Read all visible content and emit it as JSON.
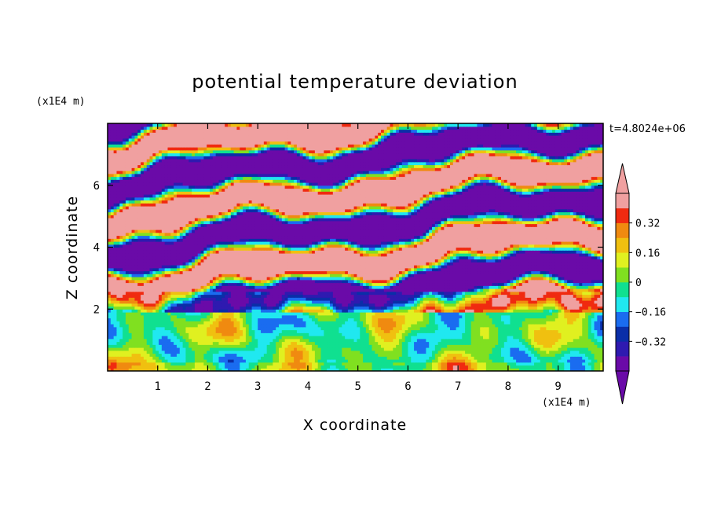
{
  "chart_data": {
    "type": "heatmap",
    "title": "potential temperature deviation",
    "xlabel": "X coordinate",
    "ylabel": "Z coordinate",
    "x_unit": "(x1E4 m)",
    "y_unit": "(x1E4 m)",
    "time_stamp": "t=4.8024e+06",
    "xlim": [
      0,
      9.9
    ],
    "ylim": [
      0,
      8.0
    ],
    "x_ticks": [
      1,
      2,
      3,
      4,
      5,
      6,
      7,
      8,
      9
    ],
    "y_ticks": [
      2,
      4,
      6
    ],
    "x_tick_labels": [
      "1",
      "2",
      "3",
      "4",
      "5",
      "6",
      "7",
      "8",
      "9"
    ],
    "y_tick_labels": [
      "2",
      "4",
      "6"
    ],
    "colorbar": {
      "levels": [
        -0.48,
        -0.4,
        -0.32,
        -0.24,
        -0.16,
        -0.08,
        0,
        0.08,
        0.16,
        0.24,
        0.32,
        0.4
      ],
      "tick_values": [
        0.32,
        0.16,
        0,
        -0.16,
        -0.32
      ],
      "tick_labels": [
        "0.32",
        "0.16",
        "0",
        "−0.16",
        "−0.32"
      ],
      "colors": [
        "#6a0aa8",
        "#2e1ab0",
        "#0a2ea8",
        "#1a6cf0",
        "#20e8f0",
        "#10e090",
        "#80e020",
        "#e0f020",
        "#f0c010",
        "#f08a10",
        "#f02a10",
        "#f0a0a0"
      ],
      "over_color": "#f0a0a0",
      "under_color": "#6a0aa8",
      "extend": "both"
    },
    "legend": "right"
  }
}
